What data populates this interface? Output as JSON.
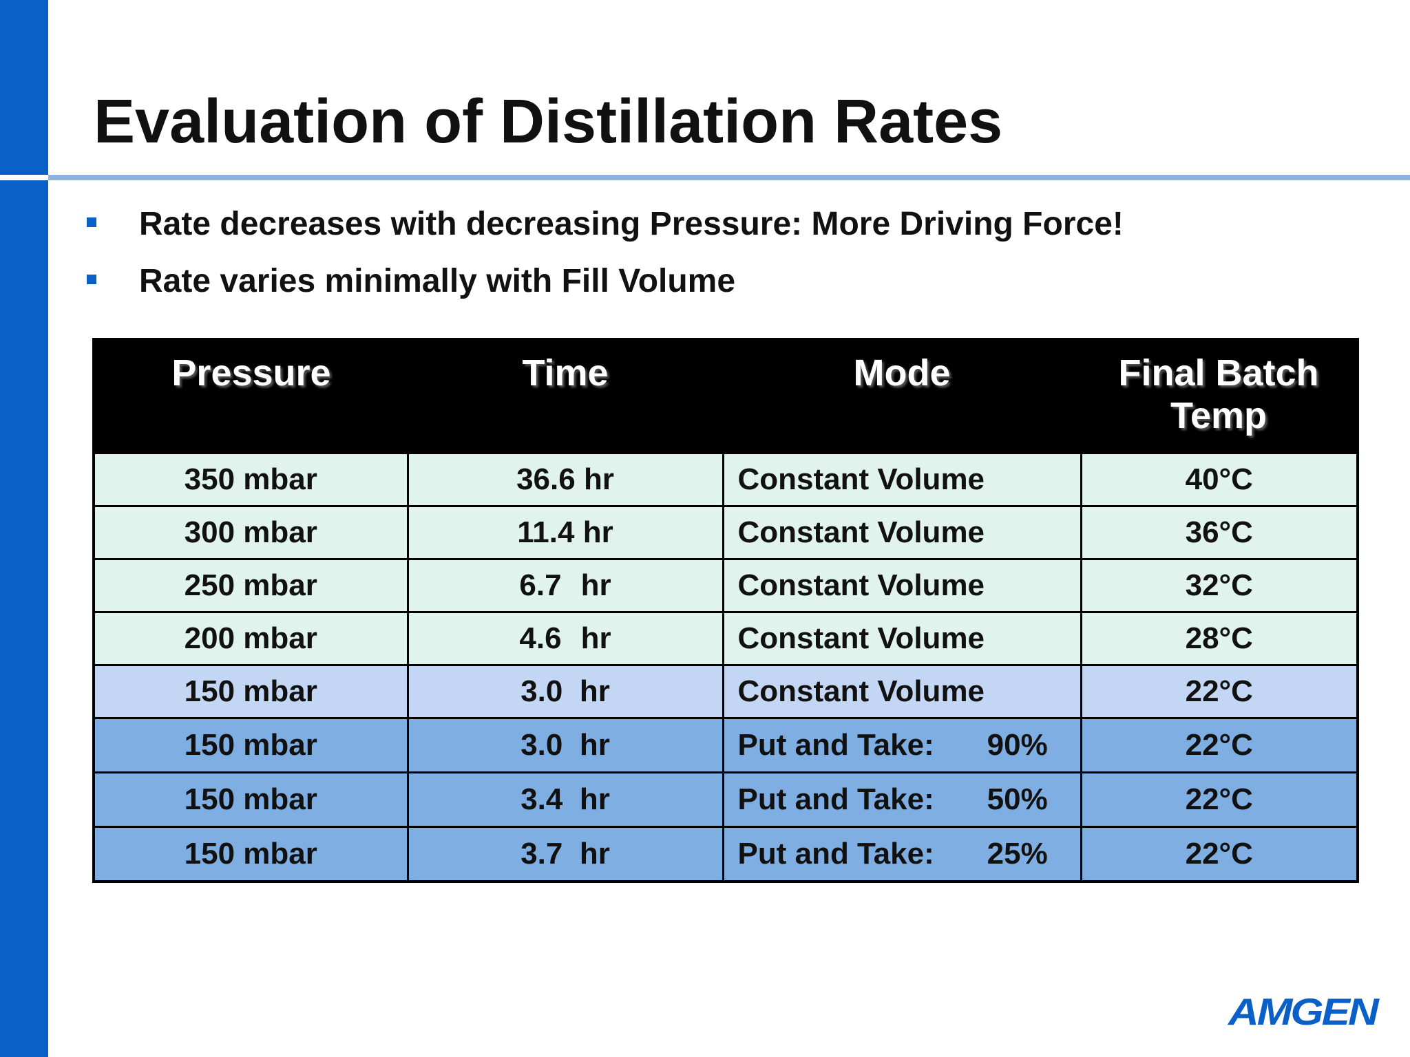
{
  "slide": {
    "title": "Evaluation of Distillation Rates",
    "bullets": [
      "Rate decreases with decreasing Pressure: More Driving Force!",
      "Rate varies minimally with Fill Volume"
    ]
  },
  "table": {
    "headers": [
      "Pressure",
      "Time",
      "Mode",
      "Final Batch Temp"
    ],
    "rows": [
      {
        "pressure": "350 mbar",
        "time_value": "36.6",
        "time_unit": "hr",
        "mode": "Constant Volume",
        "mode_pct": "",
        "temp": "40°C"
      },
      {
        "pressure": "300 mbar",
        "time_value": "11.4",
        "time_unit": "hr",
        "mode": "Constant Volume",
        "mode_pct": "",
        "temp": "36°C"
      },
      {
        "pressure": "250 mbar",
        "time_value": "6.7",
        "time_unit": "hr",
        "mode": "Constant Volume",
        "mode_pct": "",
        "temp": "32°C"
      },
      {
        "pressure": "200 mbar",
        "time_value": "4.6",
        "time_unit": "hr",
        "mode": "Constant Volume",
        "mode_pct": "",
        "temp": "28°C"
      },
      {
        "pressure": "150 mbar",
        "time_value": "3.0",
        "time_unit": "hr",
        "mode": "Constant Volume",
        "mode_pct": "",
        "temp": "22°C"
      },
      {
        "pressure": "150 mbar",
        "time_value": "3.0",
        "time_unit": "hr",
        "mode": "Put and Take:",
        "mode_pct": "90%",
        "temp": "22°C"
      },
      {
        "pressure": "150 mbar",
        "time_value": "3.4",
        "time_unit": "hr",
        "mode": "Put and Take:",
        "mode_pct": "50%",
        "temp": "22°C"
      },
      {
        "pressure": "150 mbar",
        "time_value": "3.7",
        "time_unit": "hr",
        "mode": "Put and Take:",
        "mode_pct": "25%",
        "temp": "22°C"
      }
    ],
    "row_colors": {
      "header": "#000000",
      "light": "#e0f3ec",
      "mid": "#c3d7f5",
      "dark": "#7eaee2"
    }
  },
  "brand": {
    "logo_text": "AMGEN",
    "accent_color": "#0a60c6"
  }
}
